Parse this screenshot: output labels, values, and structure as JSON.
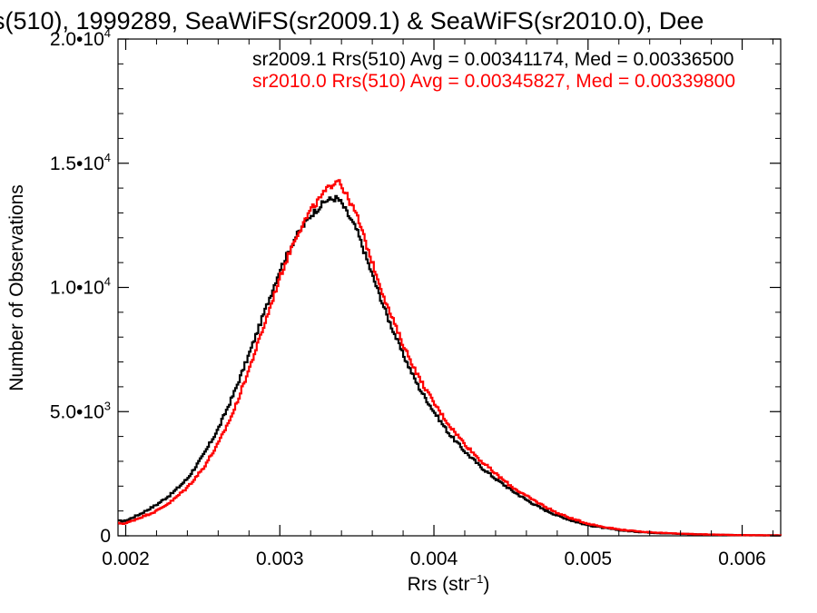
{
  "chart_data": {
    "type": "step-histogram",
    "title": "s(510), 1999289, SeaWiFS(sr2009.1) & SeaWiFS(sr2010.0), Dee",
    "xlabel": "Rrs (str",
    "xlabel_sup": "−1",
    "xlabel_close": ")",
    "ylabel": "Number of Observations",
    "xlim": [
      0.00195,
      0.00625
    ],
    "ylim": [
      0,
      20000
    ],
    "x_ticks": [
      {
        "value": 0.002,
        "label": "0.002"
      },
      {
        "value": 0.003,
        "label": "0.003"
      },
      {
        "value": 0.004,
        "label": "0.004"
      },
      {
        "value": 0.005,
        "label": "0.005"
      },
      {
        "value": 0.006,
        "label": "0.006"
      }
    ],
    "y_ticks": [
      {
        "value": 0,
        "mantissa": "0",
        "exp": ""
      },
      {
        "value": 5000,
        "mantissa": "5.0•10",
        "exp": "3"
      },
      {
        "value": 10000,
        "mantissa": "1.0•10",
        "exp": "4"
      },
      {
        "value": 15000,
        "mantissa": "1.5•10",
        "exp": "4"
      },
      {
        "value": 20000,
        "mantissa": "2.0•10",
        "exp": "4"
      }
    ],
    "legend_position": "top-right",
    "series": [
      {
        "name": "sr2009.1 Rrs(510) Avg = 0.00341174, Med = 0.00336500",
        "color": "#000000",
        "peak_x": 0.00337,
        "peak_y": 13600,
        "points": [
          [
            0.002,
            600
          ],
          [
            0.0021,
            900
          ],
          [
            0.0022,
            1250
          ],
          [
            0.0023,
            1700
          ],
          [
            0.0024,
            2300
          ],
          [
            0.0025,
            3200
          ],
          [
            0.0026,
            4300
          ],
          [
            0.0027,
            5700
          ],
          [
            0.0028,
            7300
          ],
          [
            0.0029,
            9000
          ],
          [
            0.003,
            10700
          ],
          [
            0.0031,
            12000
          ],
          [
            0.0032,
            12900
          ],
          [
            0.0033,
            13500
          ],
          [
            0.00337,
            13600
          ],
          [
            0.0034,
            13400
          ],
          [
            0.0035,
            12300
          ],
          [
            0.0036,
            10500
          ],
          [
            0.0037,
            8800
          ],
          [
            0.0038,
            7300
          ],
          [
            0.0039,
            6000
          ],
          [
            0.004,
            5000
          ],
          [
            0.0041,
            4100
          ],
          [
            0.0042,
            3400
          ],
          [
            0.0043,
            2800
          ],
          [
            0.0044,
            2300
          ],
          [
            0.0045,
            1850
          ],
          [
            0.0046,
            1450
          ],
          [
            0.0047,
            1100
          ],
          [
            0.0048,
            820
          ],
          [
            0.0049,
            600
          ],
          [
            0.005,
            430
          ],
          [
            0.0051,
            320
          ],
          [
            0.0052,
            230
          ],
          [
            0.0053,
            170
          ],
          [
            0.0054,
            130
          ],
          [
            0.0055,
            100
          ],
          [
            0.0056,
            80
          ],
          [
            0.0057,
            60
          ],
          [
            0.0058,
            45
          ],
          [
            0.0059,
            35
          ],
          [
            0.006,
            25
          ],
          [
            0.00625,
            15
          ]
        ]
      },
      {
        "name": "sr2010.0 Rrs(510) Avg = 0.00345827, Med = 0.00339800",
        "color": "#ff0000",
        "peak_x": 0.00338,
        "peak_y": 14400,
        "points": [
          [
            0.002,
            500
          ],
          [
            0.0021,
            750
          ],
          [
            0.0022,
            1000
          ],
          [
            0.0023,
            1400
          ],
          [
            0.0024,
            1950
          ],
          [
            0.0025,
            2700
          ],
          [
            0.0026,
            3700
          ],
          [
            0.0027,
            5000
          ],
          [
            0.0028,
            6700
          ],
          [
            0.0029,
            8500
          ],
          [
            0.003,
            10400
          ],
          [
            0.0031,
            12000
          ],
          [
            0.0032,
            13100
          ],
          [
            0.0033,
            13900
          ],
          [
            0.00338,
            14400
          ],
          [
            0.0034,
            14100
          ],
          [
            0.0035,
            12900
          ],
          [
            0.0036,
            11000
          ],
          [
            0.0037,
            9200
          ],
          [
            0.0038,
            7700
          ],
          [
            0.0039,
            6400
          ],
          [
            0.004,
            5350
          ],
          [
            0.0041,
            4450
          ],
          [
            0.0042,
            3700
          ],
          [
            0.0043,
            3050
          ],
          [
            0.0044,
            2500
          ],
          [
            0.0045,
            2000
          ],
          [
            0.0046,
            1600
          ],
          [
            0.0047,
            1250
          ],
          [
            0.0048,
            920
          ],
          [
            0.0049,
            680
          ],
          [
            0.005,
            490
          ],
          [
            0.0051,
            360
          ],
          [
            0.0052,
            260
          ],
          [
            0.0053,
            190
          ],
          [
            0.0054,
            145
          ],
          [
            0.0055,
            110
          ],
          [
            0.0056,
            85
          ],
          [
            0.0057,
            65
          ],
          [
            0.0058,
            50
          ],
          [
            0.0059,
            38
          ],
          [
            0.006,
            28
          ],
          [
            0.00625,
            18
          ]
        ]
      }
    ]
  }
}
